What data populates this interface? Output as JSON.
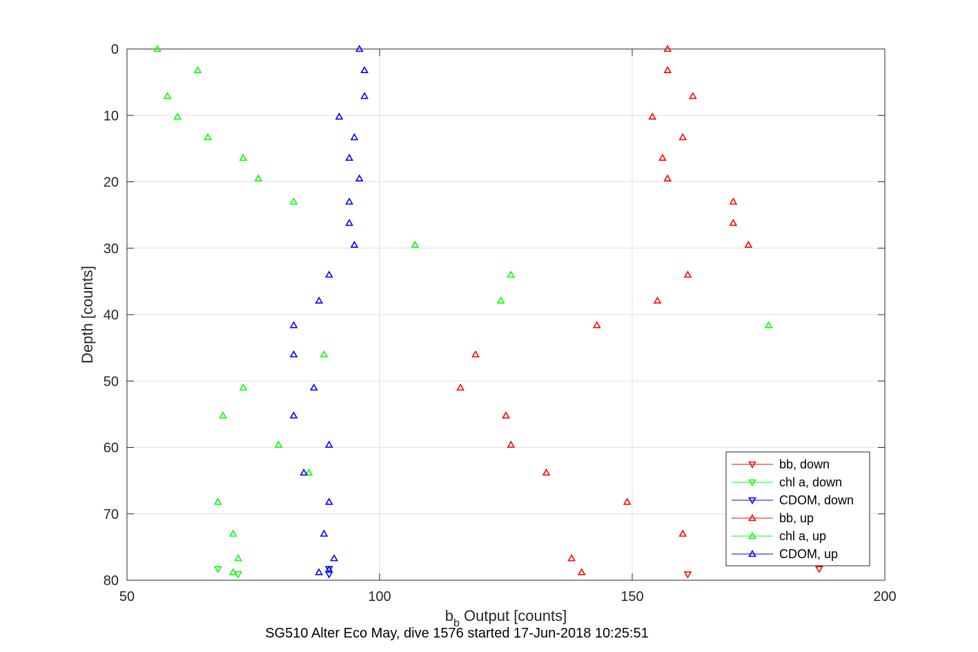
{
  "chart_data": {
    "type": "scatter",
    "title": "",
    "caption": "SG510 Alter Eco May, dive 1576 started 17-Jun-2018 10:25:51",
    "xlabel": {
      "main": "b",
      "sub": "b",
      "rest": " Output [counts]"
    },
    "ylabel": "Depth [counts]",
    "xlim": [
      50,
      200
    ],
    "ylim": [
      0,
      80
    ],
    "y_reversed": true,
    "grid": true,
    "legend_placement": "bottom-right",
    "xticks": [
      "50",
      "100",
      "150",
      "200"
    ],
    "yticks": [
      "0",
      "10",
      "20",
      "30",
      "40",
      "50",
      "60",
      "70",
      "80"
    ],
    "series": [
      {
        "name": "bb, down",
        "color": "#ff0000",
        "marker": "triangle-down",
        "points": [
          [
            187,
            78.3
          ],
          [
            161,
            79.1
          ]
        ]
      },
      {
        "name": "chl a, down",
        "color": "#00ff00",
        "marker": "triangle-down",
        "points": [
          [
            68,
            78.3
          ],
          [
            72,
            79.1
          ]
        ]
      },
      {
        "name": "CDOM, down",
        "color": "#0000ff",
        "marker": "triangle-down",
        "points": [
          [
            90,
            78.3
          ],
          [
            90,
            79.1
          ]
        ]
      },
      {
        "name": "bb, up",
        "color": "#ff0000",
        "marker": "triangle-up",
        "points": [
          [
            157,
            0
          ],
          [
            157,
            3.2
          ],
          [
            162,
            7.1
          ],
          [
            154,
            10.2
          ],
          [
            160,
            13.3
          ],
          [
            156,
            16.4
          ],
          [
            157,
            19.5
          ],
          [
            170,
            23.0
          ],
          [
            170,
            26.2
          ],
          [
            173,
            29.5
          ],
          [
            161,
            34.0
          ],
          [
            155,
            37.9
          ],
          [
            143,
            41.6
          ],
          [
            119,
            46.0
          ],
          [
            116,
            51.0
          ],
          [
            125,
            55.2
          ],
          [
            126,
            59.6
          ],
          [
            133,
            63.8
          ],
          [
            149,
            68.2
          ],
          [
            160,
            73.0
          ],
          [
            138,
            76.7
          ],
          [
            140,
            78.8
          ]
        ]
      },
      {
        "name": "chl a, up",
        "color": "#00ff00",
        "marker": "triangle-up",
        "points": [
          [
            56,
            0
          ],
          [
            64,
            3.2
          ],
          [
            58,
            7.1
          ],
          [
            60,
            10.2
          ],
          [
            66,
            13.3
          ],
          [
            73,
            16.4
          ],
          [
            76,
            19.5
          ],
          [
            83,
            23.0
          ],
          [
            107,
            29.5
          ],
          [
            126,
            34.0
          ],
          [
            124,
            37.9
          ],
          [
            177,
            41.6
          ],
          [
            89,
            46.0
          ],
          [
            73,
            51.0
          ],
          [
            69,
            55.2
          ],
          [
            80,
            59.6
          ],
          [
            86,
            63.8
          ],
          [
            68,
            68.2
          ],
          [
            71,
            73.0
          ],
          [
            72,
            76.7
          ],
          [
            71,
            78.8
          ]
        ]
      },
      {
        "name": "CDOM, up",
        "color": "#0000ff",
        "marker": "triangle-up",
        "points": [
          [
            96,
            0
          ],
          [
            97,
            3.2
          ],
          [
            97,
            7.1
          ],
          [
            92,
            10.2
          ],
          [
            95,
            13.3
          ],
          [
            94,
            16.4
          ],
          [
            96,
            19.5
          ],
          [
            94,
            23.0
          ],
          [
            94,
            26.2
          ],
          [
            95,
            29.5
          ],
          [
            90,
            34.0
          ],
          [
            88,
            37.9
          ],
          [
            83,
            41.6
          ],
          [
            83,
            46.0
          ],
          [
            87,
            51.0
          ],
          [
            83,
            55.2
          ],
          [
            90,
            59.6
          ],
          [
            85,
            63.8
          ],
          [
            90,
            68.2
          ],
          [
            89,
            73.0
          ],
          [
            91,
            76.7
          ],
          [
            88,
            78.8
          ],
          [
            90,
            78.4
          ]
        ]
      }
    ]
  }
}
